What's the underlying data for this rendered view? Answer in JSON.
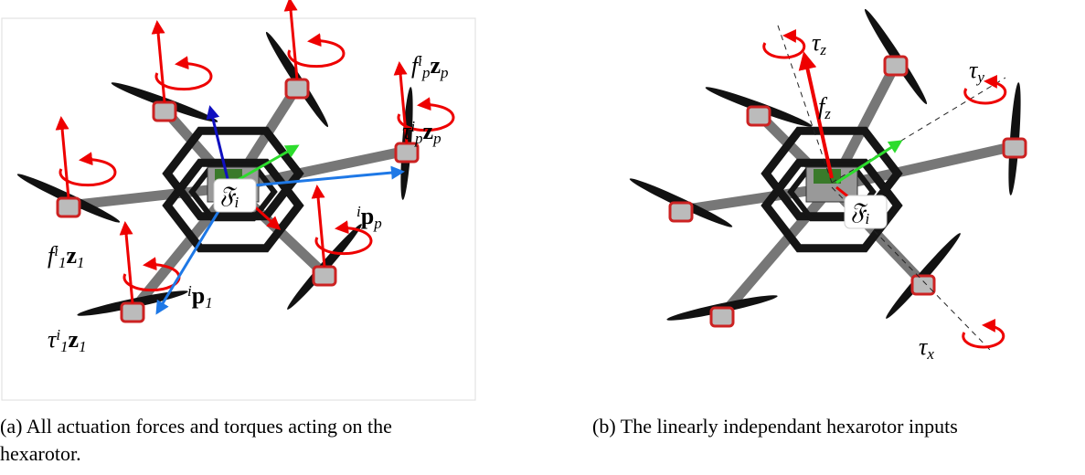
{
  "figure": {
    "panels": [
      {
        "caption": "(a) All actuation forces and torques acting on the hexarotor.",
        "labels": [
          {
            "parts": [
              {
                "text": "f",
                "style": "it"
              },
              {
                "text": "i",
                "style": "sup"
              },
              {
                "text": "p",
                "style": "sub"
              },
              {
                "text": "z",
                "style": "bold"
              },
              {
                "text": "p",
                "style": "sub"
              }
            ]
          },
          {
            "parts": [
              {
                "text": "τ",
                "style": "it"
              },
              {
                "text": "i",
                "style": "sup"
              },
              {
                "text": "p",
                "style": "sub"
              },
              {
                "text": "z",
                "style": "bold"
              },
              {
                "text": "p",
                "style": "sub"
              }
            ]
          },
          {
            "parts": [
              {
                "text": "𝔉",
                "style": "it"
              },
              {
                "text": "i",
                "style": "sub"
              }
            ]
          },
          {
            "parts": [
              {
                "text": "i",
                "style": "sup"
              },
              {
                "text": "p",
                "style": "bold"
              },
              {
                "text": "p",
                "style": "sub"
              }
            ]
          },
          {
            "parts": [
              {
                "text": "i",
                "style": "sup"
              },
              {
                "text": "p",
                "style": "bold"
              },
              {
                "text": "1",
                "style": "sub"
              }
            ]
          },
          {
            "parts": [
              {
                "text": "f",
                "style": "it"
              },
              {
                "text": "i",
                "style": "sup"
              },
              {
                "text": "1",
                "style": "sub"
              },
              {
                "text": "z",
                "style": "bold"
              },
              {
                "text": "1",
                "style": "sub"
              }
            ]
          },
          {
            "parts": [
              {
                "text": "τ",
                "style": "it"
              },
              {
                "text": "i",
                "style": "sup"
              },
              {
                "text": "1",
                "style": "sub"
              },
              {
                "text": "z",
                "style": "bold"
              },
              {
                "text": "1",
                "style": "sub"
              }
            ]
          }
        ]
      },
      {
        "caption": "(b) The linearly independant hexarotor inputs",
        "labels": [
          {
            "parts": [
              {
                "text": "τ",
                "style": "it"
              },
              {
                "text": "z",
                "style": "sub"
              }
            ]
          },
          {
            "parts": [
              {
                "text": "τ",
                "style": "it"
              },
              {
                "text": "y",
                "style": "sub"
              }
            ]
          },
          {
            "parts": [
              {
                "text": "f",
                "style": "it"
              },
              {
                "text": "z",
                "style": "sub"
              }
            ]
          },
          {
            "parts": [
              {
                "text": "𝔉",
                "style": "it"
              },
              {
                "text": "i",
                "style": "sub"
              }
            ]
          },
          {
            "parts": [
              {
                "text": "τ",
                "style": "it"
              },
              {
                "text": "x",
                "style": "sub"
              }
            ]
          }
        ]
      }
    ]
  }
}
